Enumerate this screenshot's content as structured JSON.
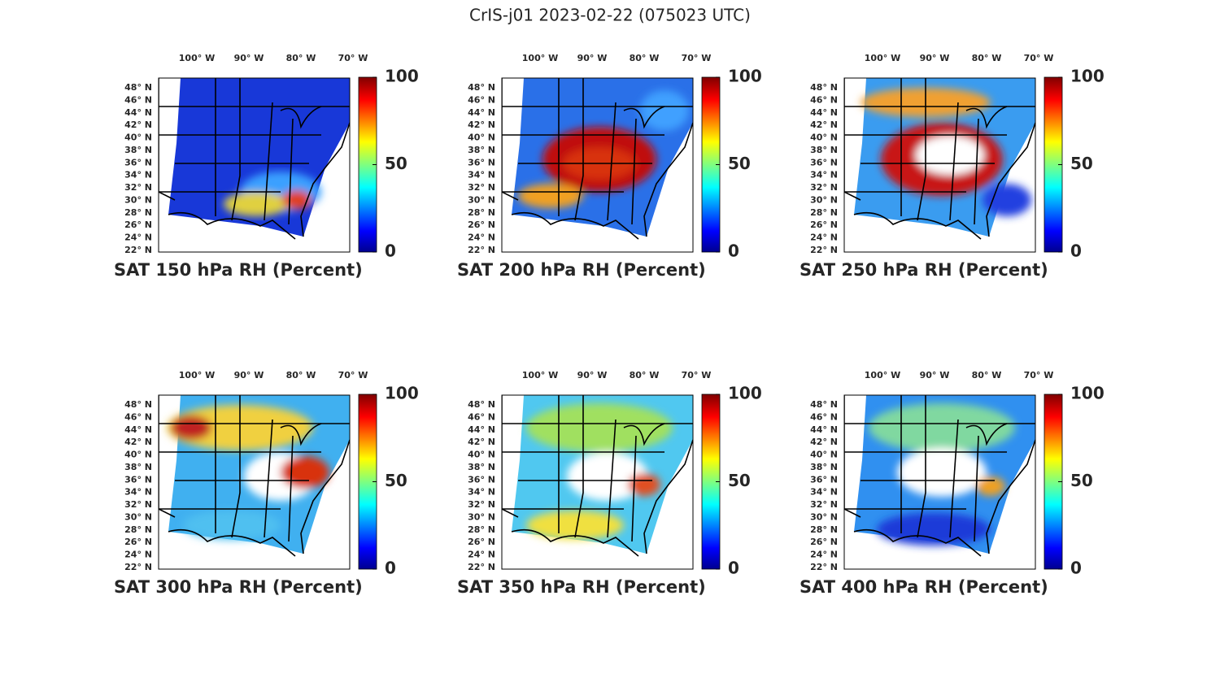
{
  "title": "CrIS-j01 2023-02-22 (075023 UTC)",
  "panels": [
    {
      "title": "SAT 150 hPa RH (Percent)"
    },
    {
      "title": "SAT 200 hPa RH (Percent)"
    },
    {
      "title": "SAT 250 hPa RH (Percent)"
    },
    {
      "title": "SAT 300 hPa RH (Percent)"
    },
    {
      "title": "SAT 350 hPa RH (Percent)"
    },
    {
      "title": "SAT 400 hPa RH (Percent)"
    }
  ],
  "lon_labels": [
    "100° W",
    "90° W",
    "80° W",
    "70° W"
  ],
  "lat_labels": [
    "48° N",
    "46° N",
    "44° N",
    "42° N",
    "40° N",
    "38° N",
    "36° N",
    "34° N",
    "32° N",
    "30° N",
    "28° N",
    "26° N",
    "24° N",
    "22° N"
  ],
  "colorbar": {
    "lim": [
      0,
      100
    ],
    "ticks": [
      0,
      50,
      100
    ]
  }
}
